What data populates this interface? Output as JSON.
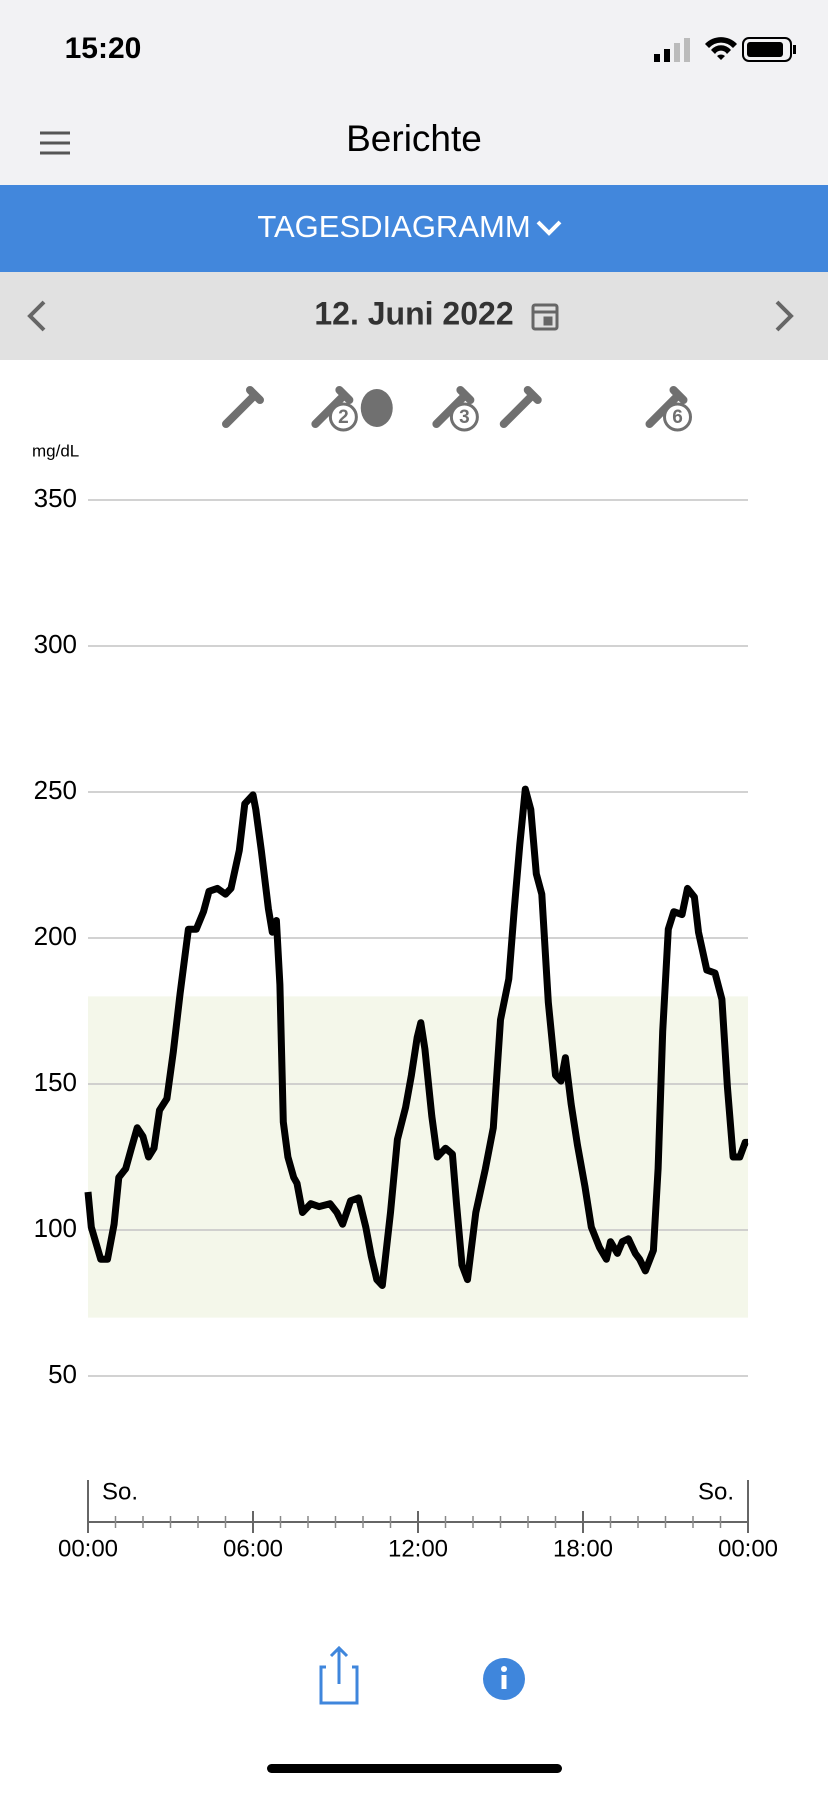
{
  "status_bar": {
    "time": "15:20"
  },
  "header": {
    "title": "Berichte"
  },
  "tab": {
    "label": "TAGESDIAGRAMM"
  },
  "date_bar": {
    "date": "12. Juni 2022"
  },
  "chart_data": {
    "type": "line",
    "unit_label": "mg/dL",
    "color": "#000000",
    "x": [
      0,
      0.12,
      0.46,
      0.71,
      0.95,
      1.12,
      1.37,
      1.58,
      1.79,
      2.0,
      2.2,
      2.4,
      2.6,
      2.87,
      3.1,
      3.35,
      3.65,
      3.94,
      4.2,
      4.4,
      4.7,
      5.0,
      5.2,
      5.5,
      5.7,
      6.0,
      6.1,
      6.3,
      6.56,
      6.7,
      6.85,
      6.98,
      7.1,
      7.27,
      7.48,
      7.6,
      7.8,
      8.1,
      8.4,
      8.8,
      9.05,
      9.26,
      9.55,
      9.84,
      10.1,
      10.3,
      10.5,
      10.7,
      11.0,
      11.25,
      11.55,
      11.76,
      11.97,
      12.1,
      12.25,
      12.5,
      12.7,
      13.0,
      13.25,
      13.4,
      13.6,
      13.8,
      14.1,
      14.45,
      14.74,
      15.0,
      15.3,
      15.5,
      15.7,
      15.9,
      16.1,
      16.3,
      16.5,
      16.74,
      17.0,
      17.2,
      17.36,
      17.57,
      17.8,
      18.07,
      18.3,
      18.6,
      18.85,
      19.0,
      19.25,
      19.43,
      19.65,
      19.9,
      20.06,
      20.27,
      20.56,
      20.73,
      20.9,
      21.1,
      21.3,
      21.6,
      21.8,
      22.05,
      22.2,
      22.5,
      22.8,
      23.05,
      23.25,
      23.46,
      23.7,
      23.9,
      24
    ],
    "values": [
      113,
      101,
      90,
      90,
      102,
      118,
      121,
      128,
      135,
      132,
      125,
      128,
      141,
      145,
      161,
      181,
      203,
      203,
      209,
      216,
      217,
      215,
      217,
      230,
      246,
      249,
      244,
      230,
      210,
      202,
      206,
      184,
      137,
      125,
      118,
      116,
      106,
      109,
      108,
      109,
      106,
      102,
      110,
      111,
      101,
      91,
      83,
      81,
      106,
      131,
      142,
      153,
      166,
      171,
      162,
      139,
      125,
      128,
      126,
      109,
      88,
      83,
      106,
      121,
      135,
      172,
      186,
      210,
      232,
      251,
      244,
      222,
      215,
      178,
      153,
      151,
      159,
      143,
      129,
      115,
      101,
      94,
      90,
      96,
      92,
      96,
      97,
      92,
      90,
      86,
      93,
      121,
      168,
      203,
      209,
      208,
      217,
      214,
      202,
      189,
      188,
      179,
      149,
      125,
      125,
      130,
      130
    ],
    "xlim": [
      0,
      24
    ],
    "xticks": [
      {
        "value": 0,
        "label": "00:00"
      },
      {
        "value": 6,
        "label": "06:00"
      },
      {
        "value": 12,
        "label": "12:00"
      },
      {
        "value": 18,
        "label": "18:00"
      },
      {
        "value": 24,
        "label": "00:00"
      }
    ],
    "xminorticks": [
      1,
      2,
      3,
      4,
      5,
      7,
      8,
      9,
      10,
      11,
      13,
      14,
      15,
      16,
      17,
      19,
      20,
      21,
      22,
      23
    ],
    "day_labels": [
      "So.",
      "So."
    ],
    "ylim": [
      0,
      350
    ],
    "yticks": [
      50,
      100,
      150,
      200,
      250,
      300,
      350
    ],
    "grid": true,
    "target_range": [
      70,
      180
    ],
    "events": [
      {
        "kind": "insulin",
        "x": 5.6
      },
      {
        "kind": "meal-insulin",
        "x": 8.85,
        "label": "2"
      },
      {
        "kind": "meal",
        "x": 10.5
      },
      {
        "kind": "meal-insulin",
        "x": 13.25,
        "label": "3"
      },
      {
        "kind": "insulin",
        "x": 15.7
      },
      {
        "kind": "meal-insulin",
        "x": 21.0,
        "label": "6"
      }
    ]
  }
}
